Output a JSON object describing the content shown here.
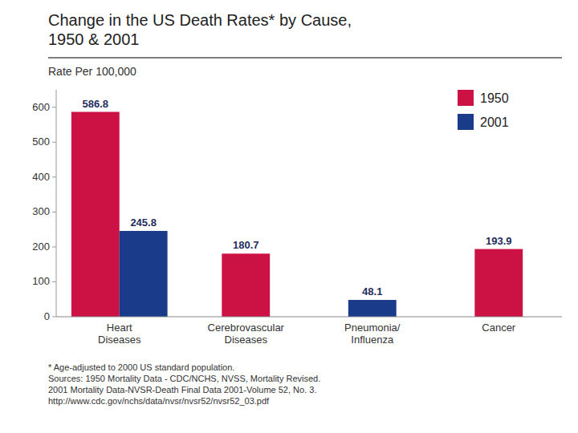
{
  "chart_data": {
    "type": "bar",
    "title": "Change in the US Death Rates* by Cause,\n1950 & 2001",
    "subtitle": "Rate Per 100,000",
    "categories": [
      "Heart\nDiseases",
      "Cerebrovascular\nDiseases",
      "Pneumonia/\nInfluenza",
      "Cancer"
    ],
    "series": [
      {
        "name": "1950",
        "color": "#CC1144",
        "values": [
          586.8,
          180.7,
          null,
          193.9
        ]
      },
      {
        "name": "2001",
        "color": "#1A3A8A",
        "values": [
          245.8,
          null,
          48.1,
          null
        ]
      }
    ],
    "ylim": [
      0,
      650
    ],
    "yticks": [
      0,
      100,
      200,
      300,
      400,
      500,
      600
    ],
    "grid": false,
    "legend": "upper right",
    "data_labels": true,
    "annotations": [
      "* Age-adjusted to 2000 US standard population.\nSources: 1950 Mortality Data - CDC/NCHS, NVSS, Mortality Revised.\n2001 Mortality Data-NVSR-Death Final Data 2001-Volume 52, No. 3.\nhttp://www.cdc.gov/nchs/data/nvsr/nvsr52/nvsr52_03.pdf"
    ]
  }
}
